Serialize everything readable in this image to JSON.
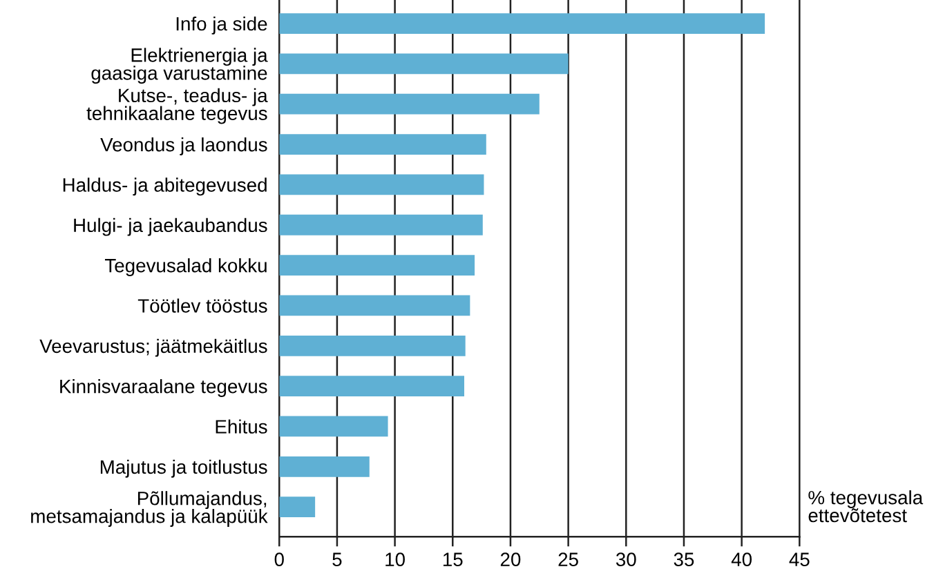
{
  "chart_data": {
    "type": "bar",
    "orientation": "horizontal",
    "categories": [
      "Info ja side",
      "Elektrienergia ja\ngaasiga varustamine",
      "Kutse-, teadus- ja\ntehnikaalane tegevus",
      "Veondus ja laondus",
      "Haldus- ja abitegevused",
      "Hulgi- ja jaekaubandus",
      "Tegevusalad kokku",
      "Töötlev tööstus",
      "Veevarustus; jäätmekäitlus",
      "Kinnisvaraalane tegevus",
      "Ehitus",
      "Majutus ja toitlustus",
      "Põllumajandus,\nmetsamajandus ja kalapüük"
    ],
    "values": [
      42.0,
      25.0,
      22.5,
      17.9,
      17.7,
      17.6,
      16.9,
      16.5,
      16.1,
      16.0,
      9.4,
      7.8,
      3.1
    ],
    "color": "#5fb0d4",
    "xlim": [
      0,
      45
    ],
    "xticks": [
      0,
      5,
      10,
      15,
      20,
      25,
      30,
      35,
      40,
      45
    ],
    "xlabel": "% tegevusala\nettevõtetest",
    "grid": "x"
  }
}
